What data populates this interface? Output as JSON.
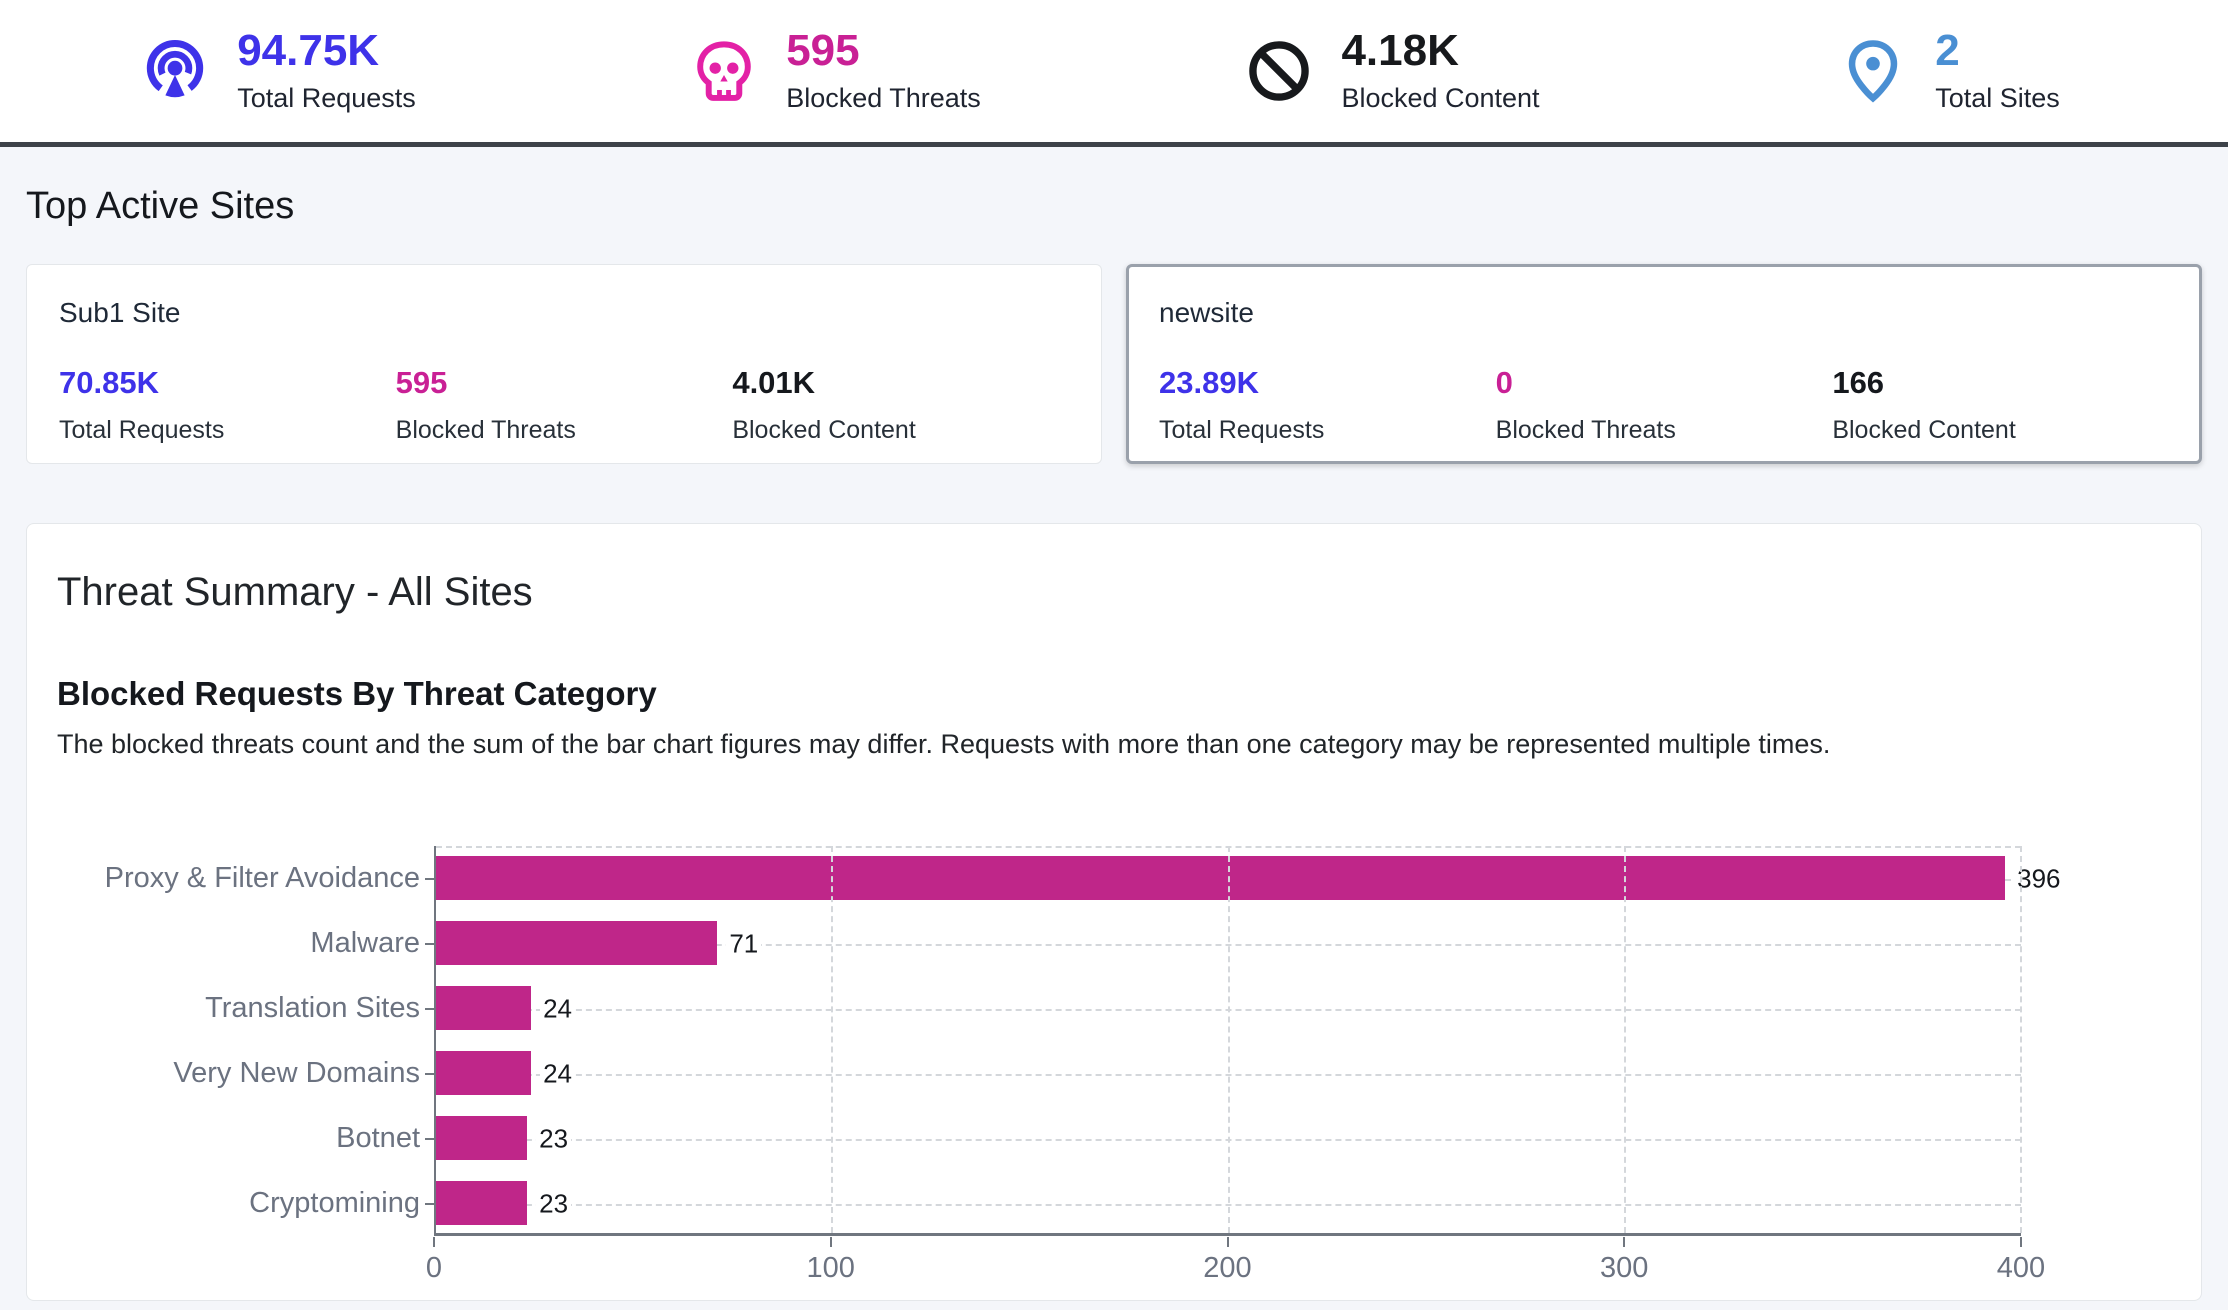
{
  "colors": {
    "requests_blue": "#3e32e9",
    "threats_pink": "#c92095",
    "skull_pink": "#e321a6",
    "content_black": "#17191c",
    "sites_blue": "#4a8fd3"
  },
  "stats_bar": {
    "items": [
      {
        "icon": "broadcast-icon",
        "value": "94.75K",
        "label": "Total Requests"
      },
      {
        "icon": "skull-icon",
        "value": "595",
        "label": "Blocked Threats"
      },
      {
        "icon": "ban-icon",
        "value": "4.18K",
        "label": "Blocked Content"
      },
      {
        "icon": "location-pin-icon",
        "value": "2",
        "label": "Total Sites"
      }
    ]
  },
  "top_active_sites": {
    "heading": "Top Active Sites",
    "cards": [
      {
        "site_name": "Sub1 Site",
        "selected": false,
        "metrics": [
          {
            "value": "70.85K",
            "label": "Total Requests"
          },
          {
            "value": "595",
            "label": "Blocked Threats"
          },
          {
            "value": "4.01K",
            "label": "Blocked Content"
          }
        ]
      },
      {
        "site_name": "newsite",
        "selected": true,
        "metrics": [
          {
            "value": "23.89K",
            "label": "Total Requests"
          },
          {
            "value": "0",
            "label": "Blocked Threats"
          },
          {
            "value": "166",
            "label": "Blocked Content"
          }
        ]
      }
    ]
  },
  "threat_summary": {
    "heading": "Threat Summary - All Sites",
    "chart_title": "Blocked Requests By Threat Category",
    "chart_note": "The blocked threats count and the sum of the bar chart figures may differ. Requests with more than one category may be represented multiple times."
  },
  "chart_data": {
    "type": "bar",
    "orientation": "horizontal",
    "title": "Blocked Requests By Threat Category",
    "categories": [
      "Proxy & Filter Avoidance",
      "Malware",
      "Translation Sites",
      "Very New Domains",
      "Botnet",
      "Cryptomining"
    ],
    "values": [
      396,
      71,
      24,
      24,
      23,
      23
    ],
    "xlabel": "",
    "ylabel": "",
    "xlim": [
      0,
      400
    ],
    "xticks": [
      0,
      100,
      200,
      300,
      400
    ],
    "grid": true,
    "legend": "none",
    "bar_color": "#bf2689"
  }
}
